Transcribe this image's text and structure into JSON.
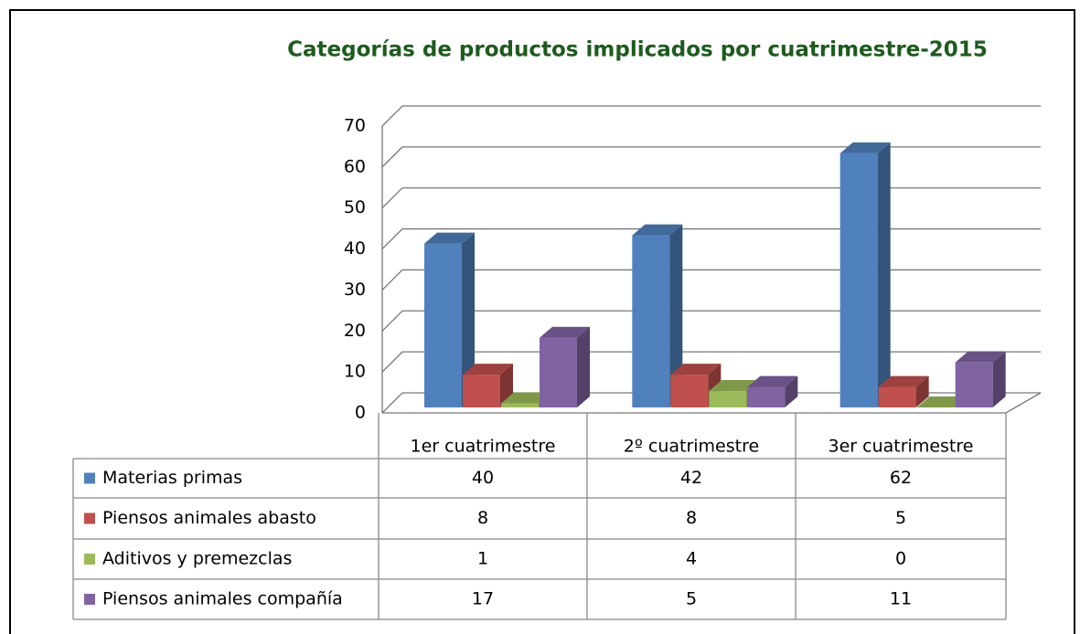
{
  "chart_data": {
    "type": "bar3d",
    "title": "Categorías de productos implicados por cuatrimestre-2015",
    "categories": [
      "1er cuatrimestre",
      "2º cuatrimestre",
      "3er cuatrimestre"
    ],
    "series": [
      {
        "name": "Materias primas",
        "color": "#4f81bd",
        "values": [
          40,
          42,
          62
        ]
      },
      {
        "name": "Piensos animales abasto",
        "color": "#c0504d",
        "values": [
          8,
          8,
          5
        ]
      },
      {
        "name": "Aditivos y premezclas",
        "color": "#9bbb59",
        "values": [
          1,
          4,
          0
        ]
      },
      {
        "name": "Piensos animales compañía",
        "color": "#8064a2",
        "values": [
          17,
          5,
          11
        ]
      }
    ],
    "ylim": [
      0,
      70
    ],
    "yticks": [
      0,
      10,
      20,
      30,
      40,
      50,
      60,
      70
    ],
    "grid": true,
    "data_table": true
  }
}
